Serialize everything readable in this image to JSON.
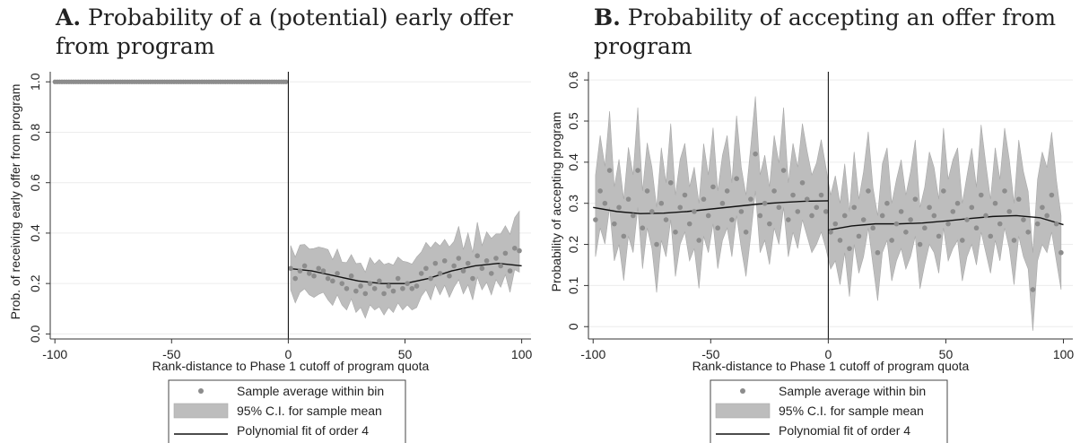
{
  "charts": [
    {
      "id": "A",
      "title_letter": "A.",
      "title_line1": " Probability of a (potential) early offer",
      "title_line2": "from program",
      "xlabel": "Rank-distance to Phase 1 cutoff of program quota",
      "ylabel": "Prob. of receiving early offer from program",
      "xlim": [
        -102,
        104
      ],
      "ylim": [
        -0.02,
        1.04
      ],
      "xticks": [
        -100,
        -50,
        0,
        50,
        100
      ],
      "yticks": [
        0.0,
        0.2,
        0.4,
        0.6,
        0.8,
        1.0
      ],
      "ytick_labels": [
        "0.0",
        "0.2",
        "0.4",
        "0.6",
        "0.8",
        "1.0"
      ]
    },
    {
      "id": "B",
      "title_letter": "B.",
      "title_line1": " Probability of accepting an offer from",
      "title_line2": "program",
      "xlabel": "Rank-distance to Phase 1 cutoff of program quota",
      "ylabel": "Probability of accepting program",
      "xlim": [
        -102,
        104
      ],
      "ylim": [
        -0.03,
        0.62
      ],
      "xticks": [
        -100,
        -50,
        0,
        50,
        100
      ],
      "yticks": [
        0,
        0.1,
        0.2,
        0.3,
        0.4,
        0.5,
        0.6
      ],
      "ytick_labels": [
        "0",
        "0.1",
        "0.2",
        "0.3",
        "0.4",
        "0.5",
        "0.6"
      ]
    }
  ],
  "legend": {
    "items": [
      {
        "label": "Sample average within bin",
        "kind": "marker"
      },
      {
        "label": "95% C.I. for sample mean",
        "kind": "band"
      },
      {
        "label": "Polynomial fit of order 4",
        "kind": "line"
      }
    ]
  },
  "colors": {
    "marker": "#8c8c8c",
    "band": "#bdbdbd",
    "band_edge": "#a8a8a8",
    "fit_line": "#111111",
    "axis": "#333333",
    "grid": "#ececec",
    "cutoff_line": "#000000"
  },
  "chart_data": [
    {
      "type": "scatter",
      "title": "A. Probability of a (potential) early offer from program",
      "xlabel": "Rank-distance to Phase 1 cutoff of program quota",
      "ylabel": "Prob. of receiving early offer from program",
      "xlim": [
        -102,
        104
      ],
      "ylim": [
        -0.02,
        1.04
      ],
      "cutoff_x": 0,
      "legend_position": "bottom",
      "series": [
        {
          "name": "Sample average within bin",
          "segments": [
            {
              "x_range": [
                -100,
                -1
              ],
              "values": "constant",
              "y": 1.0
            },
            {
              "x": [
                1,
                3,
                5,
                7,
                9,
                11,
                13,
                15,
                17,
                19,
                21,
                23,
                25,
                27,
                29,
                31,
                33,
                35,
                37,
                39,
                41,
                43,
                45,
                47,
                49,
                51,
                53,
                55,
                57,
                59,
                61,
                63,
                65,
                67,
                69,
                71,
                73,
                75,
                77,
                79,
                81,
                83,
                85,
                87,
                89,
                91,
                93,
                95,
                97,
                99
              ],
              "y": [
                0.26,
                0.22,
                0.25,
                0.27,
                0.24,
                0.23,
                0.26,
                0.25,
                0.22,
                0.21,
                0.24,
                0.2,
                0.18,
                0.23,
                0.17,
                0.19,
                0.16,
                0.2,
                0.18,
                0.21,
                0.16,
                0.19,
                0.17,
                0.22,
                0.18,
                0.2,
                0.18,
                0.19,
                0.24,
                0.26,
                0.22,
                0.28,
                0.24,
                0.29,
                0.23,
                0.27,
                0.3,
                0.25,
                0.28,
                0.22,
                0.31,
                0.26,
                0.29,
                0.24,
                0.3,
                0.27,
                0.32,
                0.25,
                0.34,
                0.33
              ]
            }
          ]
        },
        {
          "name": "95% C.I. for sample mean",
          "note_halfwidth_left": 0.0,
          "halfwidth_right": 0.085
        },
        {
          "name": "Polynomial fit of order 4",
          "segments": [
            {
              "x": [
                -100,
                0
              ],
              "y": [
                1.0,
                1.0
              ]
            },
            {
              "x": [
                0,
                10,
                20,
                30,
                40,
                50,
                60,
                70,
                80,
                90,
                100
              ],
              "y": [
                0.26,
                0.25,
                0.23,
                0.21,
                0.2,
                0.2,
                0.22,
                0.25,
                0.27,
                0.28,
                0.27
              ]
            }
          ]
        }
      ]
    },
    {
      "type": "scatter",
      "title": "B. Probability of accepting an offer from program",
      "xlabel": "Rank-distance to Phase 1 cutoff of program quota",
      "ylabel": "Probability of accepting program",
      "xlim": [
        -102,
        104
      ],
      "ylim": [
        -0.03,
        0.62
      ],
      "cutoff_x": 0,
      "legend_position": "bottom",
      "series": [
        {
          "name": "Sample average within bin",
          "x": [
            -99,
            -97,
            -95,
            -93,
            -91,
            -89,
            -87,
            -85,
            -83,
            -81,
            -79,
            -77,
            -75,
            -73,
            -71,
            -69,
            -67,
            -65,
            -63,
            -61,
            -59,
            -57,
            -55,
            -53,
            -51,
            -49,
            -47,
            -45,
            -43,
            -41,
            -39,
            -37,
            -35,
            -33,
            -31,
            -29,
            -27,
            -25,
            -23,
            -21,
            -19,
            -17,
            -15,
            -13,
            -11,
            -9,
            -7,
            -5,
            -3,
            -1,
            1,
            3,
            5,
            7,
            9,
            11,
            13,
            15,
            17,
            19,
            21,
            23,
            25,
            27,
            29,
            31,
            33,
            35,
            37,
            39,
            41,
            43,
            45,
            47,
            49,
            51,
            53,
            55,
            57,
            59,
            61,
            63,
            65,
            67,
            69,
            71,
            73,
            75,
            77,
            79,
            81,
            83,
            85,
            87,
            89,
            91,
            93,
            95,
            97,
            99
          ],
          "y": [
            0.26,
            0.33,
            0.3,
            0.38,
            0.25,
            0.29,
            0.22,
            0.31,
            0.27,
            0.38,
            0.24,
            0.33,
            0.28,
            0.2,
            0.3,
            0.26,
            0.35,
            0.23,
            0.29,
            0.32,
            0.25,
            0.28,
            0.21,
            0.31,
            0.27,
            0.34,
            0.24,
            0.3,
            0.33,
            0.26,
            0.36,
            0.28,
            0.23,
            0.31,
            0.42,
            0.27,
            0.3,
            0.25,
            0.33,
            0.29,
            0.38,
            0.26,
            0.32,
            0.28,
            0.35,
            0.31,
            0.27,
            0.29,
            0.32,
            0.28,
            0.23,
            0.25,
            0.21,
            0.27,
            0.19,
            0.29,
            0.22,
            0.26,
            0.33,
            0.24,
            0.18,
            0.27,
            0.3,
            0.21,
            0.25,
            0.28,
            0.23,
            0.26,
            0.31,
            0.2,
            0.24,
            0.29,
            0.27,
            0.22,
            0.33,
            0.25,
            0.28,
            0.3,
            0.21,
            0.26,
            0.29,
            0.24,
            0.32,
            0.27,
            0.22,
            0.3,
            0.25,
            0.33,
            0.28,
            0.21,
            0.31,
            0.26,
            0.23,
            0.09,
            0.25,
            0.29,
            0.27,
            0.32,
            0.25,
            0.18
          ]
        },
        {
          "name": "95% C.I. for sample mean",
          "halfwidth": 0.09
        },
        {
          "name": "Polynomial fit of order 4",
          "segments": [
            {
              "x": [
                -100,
                -90,
                -80,
                -70,
                -60,
                -50,
                -40,
                -30,
                -20,
                -10,
                0
              ],
              "y": [
                0.29,
                0.28,
                0.275,
                0.276,
                0.28,
                0.286,
                0.292,
                0.298,
                0.302,
                0.305,
                0.306
              ]
            },
            {
              "x": [
                0,
                10,
                20,
                30,
                40,
                50,
                60,
                70,
                80,
                90,
                100
              ],
              "y": [
                0.235,
                0.245,
                0.25,
                0.25,
                0.252,
                0.257,
                0.263,
                0.268,
                0.27,
                0.265,
                0.248
              ]
            }
          ]
        }
      ]
    }
  ]
}
